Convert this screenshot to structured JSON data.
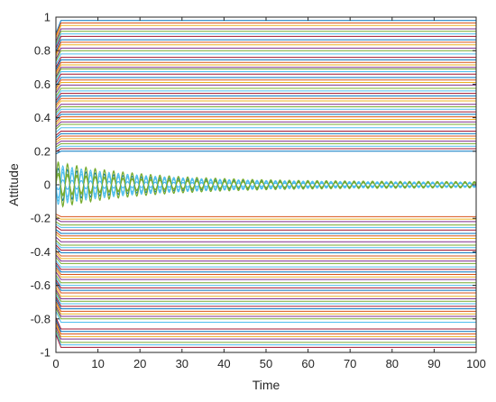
{
  "chart_data": {
    "type": "line",
    "title": "",
    "xlabel": "Time",
    "ylabel": "Attitude",
    "xlim": [
      0,
      100
    ],
    "ylim": [
      -1,
      1
    ],
    "xticks": [
      0,
      10,
      20,
      30,
      40,
      50,
      60,
      70,
      80,
      90,
      100
    ],
    "xtick_labels": [
      "0",
      "10",
      "20",
      "30",
      "40",
      "50",
      "60",
      "70",
      "80",
      "90",
      "100"
    ],
    "yticks": [
      -1,
      -0.8,
      -0.6,
      -0.4,
      -0.2,
      0,
      0.2,
      0.4,
      0.6,
      0.8,
      1
    ],
    "ytick_labels": [
      "-1",
      "-0.8",
      "-0.6",
      "-0.4",
      "-0.2",
      "0",
      "0.2",
      "0.4",
      "0.6",
      "0.8",
      "1"
    ],
    "grid": false,
    "legend": "none",
    "palette": [
      "#0072BD",
      "#D95319",
      "#EDB120",
      "#7E2F8E",
      "#77AC30",
      "#4DBEEE",
      "#A2142F"
    ],
    "constant_series_levels": [
      0.98,
      0.965,
      0.95,
      0.93,
      0.915,
      0.9,
      0.885,
      0.865,
      0.85,
      0.835,
      0.815,
      0.8,
      0.78,
      0.76,
      0.745,
      0.73,
      0.715,
      0.7,
      0.69,
      0.675,
      0.66,
      0.64,
      0.625,
      0.61,
      0.595,
      0.575,
      0.56,
      0.545,
      0.53,
      0.515,
      0.5,
      0.48,
      0.465,
      0.45,
      0.435,
      0.42,
      0.405,
      0.39,
      0.375,
      0.36,
      0.34,
      0.32,
      0.305,
      0.29,
      0.275,
      0.26,
      0.245,
      0.23,
      0.215,
      0.2,
      -0.19,
      -0.205,
      -0.22,
      -0.24,
      -0.255,
      -0.27,
      -0.29,
      -0.305,
      -0.32,
      -0.34,
      -0.36,
      -0.375,
      -0.39,
      -0.405,
      -0.425,
      -0.44,
      -0.455,
      -0.47,
      -0.49,
      -0.505,
      -0.52,
      -0.535,
      -0.55,
      -0.565,
      -0.585,
      -0.6,
      -0.615,
      -0.63,
      -0.645,
      -0.665,
      -0.68,
      -0.695,
      -0.71,
      -0.725,
      -0.74,
      -0.755,
      -0.77,
      -0.785,
      -0.8,
      -0.82,
      -0.86,
      -0.875,
      -0.89,
      -0.905,
      -0.92,
      -0.94,
      -0.955,
      -0.97
    ],
    "oscillating_series": [
      {
        "initial": 0.14,
        "final_amplitude": 0.018,
        "color": "#77AC30"
      },
      {
        "initial": 0.12,
        "final_amplitude": 0.015,
        "color": "#4DBEEE"
      },
      {
        "initial": 0.1,
        "final_amplitude": 0.013,
        "color": "#0072BD"
      },
      {
        "initial": 0.08,
        "final_amplitude": 0.012,
        "color": "#4DBEEE"
      },
      {
        "initial": 0.06,
        "final_amplitude": 0.01,
        "color": "#77AC30"
      },
      {
        "initial": 0.03,
        "final_amplitude": 0.008,
        "color": "#0072BD"
      },
      {
        "initial": -0.03,
        "final_amplitude": 0.008,
        "color": "#4DBEEE"
      },
      {
        "initial": -0.07,
        "final_amplitude": 0.011,
        "color": "#77AC30"
      },
      {
        "initial": -0.1,
        "final_amplitude": 0.013,
        "color": "#4DBEEE"
      },
      {
        "initial": -0.13,
        "final_amplitude": 0.016,
        "color": "#77AC30"
      }
    ],
    "oscillation_period": 2.2
  }
}
